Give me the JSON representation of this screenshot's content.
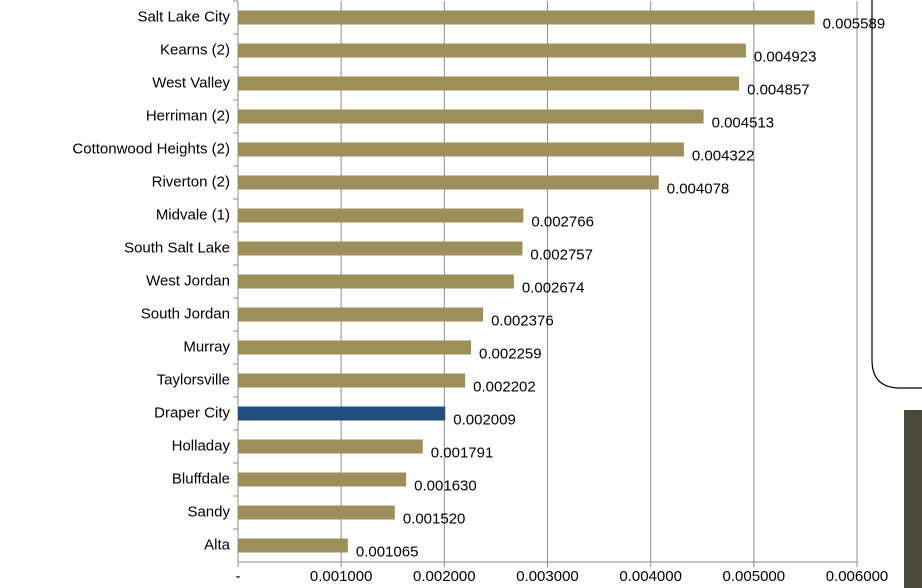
{
  "chart_data": {
    "type": "bar",
    "orientation": "horizontal",
    "categories": [
      "Salt Lake City",
      "Kearns (2)",
      "West Valley",
      "Herriman (2)",
      "Cottonwood Heights (2)",
      "Riverton (2)",
      "Midvale (1)",
      "South Salt Lake",
      "West Jordan",
      "South Jordan",
      "Murray",
      "Taylorsville",
      "Draper City",
      "Holladay",
      "Bluffdale",
      "Sandy",
      "Alta"
    ],
    "values": [
      0.005589,
      0.004923,
      0.004857,
      0.004513,
      0.004322,
      0.004078,
      0.002766,
      0.002757,
      0.002674,
      0.002376,
      0.002259,
      0.002202,
      0.002009,
      0.001791,
      0.00163,
      0.00152,
      0.001065
    ],
    "value_labels": [
      "0.005589",
      "0.004923",
      "0.004857",
      "0.004513",
      "0.004322",
      "0.004078",
      "0.002766",
      "0.002757",
      "0.002674",
      "0.002376",
      "0.002259",
      "0.002202",
      "0.002009",
      "0.001791",
      "0.001630",
      "0.001520",
      "0.001065"
    ],
    "colors": [
      "#9c8f5a",
      "#9c8f5a",
      "#9c8f5a",
      "#9c8f5a",
      "#9c8f5a",
      "#9c8f5a",
      "#9c8f5a",
      "#9c8f5a",
      "#9c8f5a",
      "#9c8f5a",
      "#9c8f5a",
      "#9c8f5a",
      "#1f4e7d",
      "#9c8f5a",
      "#9c8f5a",
      "#9c8f5a",
      "#9c8f5a"
    ],
    "xlim": [
      0,
      0.006
    ],
    "xticks": [
      {
        "value": 0,
        "label": "-"
      },
      {
        "value": 0.001,
        "label": "0.001000"
      },
      {
        "value": 0.002,
        "label": "0.002000"
      },
      {
        "value": 0.003,
        "label": "0.003000"
      },
      {
        "value": 0.004,
        "label": "0.004000"
      },
      {
        "value": 0.005,
        "label": "0.005000"
      },
      {
        "value": 0.006,
        "label": "0.006000"
      }
    ],
    "grid": true
  }
}
